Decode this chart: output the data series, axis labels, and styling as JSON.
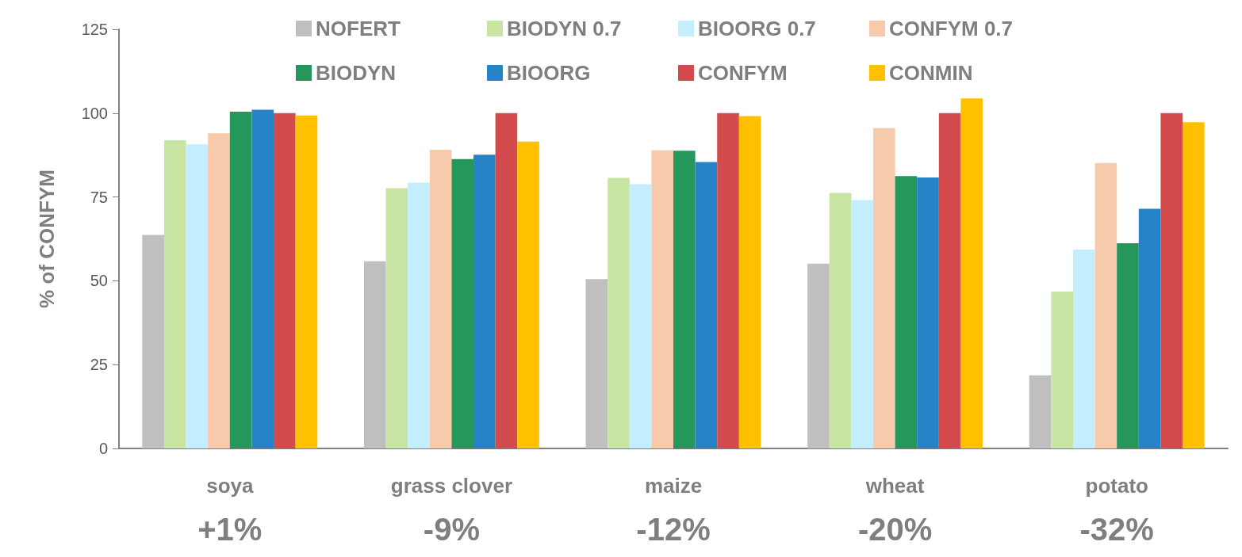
{
  "chart_data": {
    "type": "bar",
    "ylabel": "% of CONFYM",
    "categories": [
      "soya",
      "grass clover",
      "maize",
      "wheat",
      "potato"
    ],
    "ylim": [
      0,
      125
    ],
    "yticks": [
      0,
      25,
      50,
      75,
      100,
      125
    ],
    "grid": false,
    "legend": "top",
    "series": [
      {
        "name": "NOFERT",
        "color": "#bfbfbf",
        "values": [
          63.7,
          55.8,
          50.5,
          55.1,
          21.8
        ]
      },
      {
        "name": "BIODYN 0.7",
        "color": "#c9e5a4",
        "values": [
          91.9,
          77.6,
          80.7,
          76.2,
          46.8
        ]
      },
      {
        "name": "BIOORG 0.7",
        "color": "#c4eefd",
        "values": [
          90.7,
          79.3,
          78.8,
          74.1,
          59.3
        ]
      },
      {
        "name": "CONFYM 0.7",
        "color": "#f7caac",
        "values": [
          94.0,
          89.1,
          88.9,
          95.5,
          85.1
        ]
      },
      {
        "name": "BIODYN",
        "color": "#26975a",
        "values": [
          100.4,
          86.3,
          88.8,
          81.2,
          61.2
        ]
      },
      {
        "name": "BIOORG",
        "color": "#2783c8",
        "values": [
          101.0,
          87.6,
          85.4,
          80.8,
          71.5
        ]
      },
      {
        "name": "CONFYM",
        "color": "#d44b4d",
        "values": [
          100,
          100,
          100,
          100,
          100
        ]
      },
      {
        "name": "CONMIN",
        "color": "#ffc000",
        "values": [
          99.3,
          91.5,
          99.1,
          104.4,
          97.3
        ]
      }
    ],
    "annotations": [
      "+1%",
      "-9%",
      "-12%",
      "-20%",
      "-32%"
    ]
  }
}
